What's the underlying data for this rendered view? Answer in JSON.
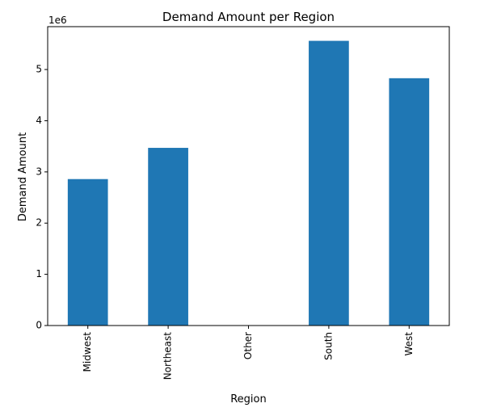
{
  "chart_data": {
    "type": "bar",
    "title": "Demand Amount per Region",
    "xlabel": "Region",
    "ylabel": "Demand Amount",
    "scale_label": "1e6",
    "categories": [
      "Midwest",
      "Northeast",
      "Other",
      "South",
      "West"
    ],
    "values": [
      2860000,
      3470000,
      0,
      5560000,
      4830000
    ],
    "ylim": [
      0,
      5837000
    ],
    "yticks": [
      0,
      1000000,
      2000000,
      3000000,
      4000000,
      5000000
    ],
    "ytick_labels": [
      "0",
      "1",
      "2",
      "3",
      "4",
      "5"
    ],
    "bar_color": "#1f77b4",
    "grid": false,
    "legend": "none"
  }
}
